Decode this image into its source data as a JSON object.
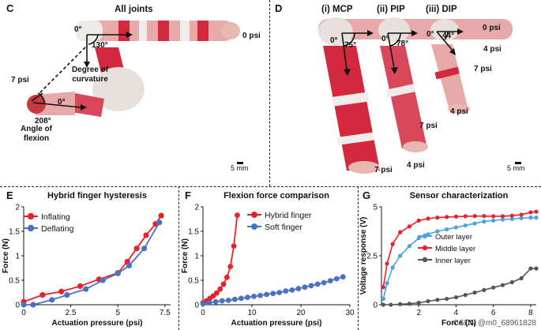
{
  "panel_C": {
    "letter": "C",
    "title": "All joints",
    "labels": {
      "psi0": "0 psi",
      "psi7": "7 psi",
      "deg0a": "0°",
      "deg130": "130°",
      "deg0b": "0°",
      "deg208": "208°",
      "curv": "Degree of curvature",
      "flex": "Angle of flexion",
      "scale": "5 mm"
    }
  },
  "panel_D": {
    "letter": "D",
    "joints": [
      "(i) MCP",
      "(ii) PIP",
      "(iii) DIP"
    ],
    "labels": {
      "deg0_1": "0°",
      "deg75": "75°",
      "deg0_2": "0°",
      "deg78": "78°",
      "deg0_3": "0°",
      "deg44": "44°",
      "p0": "0 psi",
      "p4a": "4 psi",
      "p7a": "7 psi",
      "p4b": "4 psi",
      "p7b": "7 psi",
      "p4c": "4 psi",
      "p7c": "7 psi",
      "scale": "5 mm"
    }
  },
  "chart_data": [
    {
      "panel": "E",
      "type": "line",
      "title": "Hybrid finger hysteresis",
      "xlabel": "Actuation pressure (psi)",
      "ylabel": "Force (N)",
      "xlim": [
        0,
        7.8
      ],
      "ylim": [
        0,
        2
      ],
      "xticks": [
        "0",
        "2.5",
        "5",
        "7.5"
      ],
      "yticks": [
        "0",
        "0.5",
        "1",
        "1.5",
        "2"
      ],
      "legend": "top-left",
      "series": [
        {
          "name": "Inflating",
          "color": "#e8212a",
          "x": [
            0,
            1,
            2,
            3,
            4,
            5,
            5.5,
            6,
            6.5,
            7,
            7.3
          ],
          "y": [
            0.06,
            0.2,
            0.27,
            0.38,
            0.52,
            0.65,
            0.88,
            1.15,
            1.42,
            1.65,
            1.82
          ]
        },
        {
          "name": "Deflating",
          "color": "#4a72c4",
          "x": [
            0,
            0.5,
            1.5,
            2.3,
            3.3,
            4.2,
            5,
            5.6,
            6.4,
            7.2
          ],
          "y": [
            0.0,
            0.0,
            0.1,
            0.2,
            0.32,
            0.5,
            0.64,
            0.8,
            1.15,
            1.68
          ]
        }
      ]
    },
    {
      "panel": "F",
      "type": "line",
      "title": "Flexion force comparison",
      "xlabel": "Actuation pressure (psi)",
      "ylabel": "Force (N)",
      "xlim": [
        0,
        30
      ],
      "ylim": [
        0,
        2
      ],
      "xticks": [
        "0",
        "10",
        "20",
        "30"
      ],
      "yticks": [
        "0",
        "0.5",
        "1",
        "1.5",
        "2"
      ],
      "legend": "top-right",
      "series": [
        {
          "name": "Hybrid finger",
          "color": "#e8212a",
          "x": [
            0,
            0.7,
            1.4,
            2.1,
            2.8,
            3.5,
            4.2,
            4.9,
            5.6,
            6.3,
            7.0
          ],
          "y": [
            0.04,
            0.08,
            0.13,
            0.18,
            0.24,
            0.32,
            0.42,
            0.56,
            0.78,
            1.2,
            1.83
          ]
        },
        {
          "name": "Soft finger",
          "color": "#4a72c4",
          "x": [
            0,
            1.3,
            2.6,
            3.9,
            5.2,
            6.5,
            7.8,
            9.1,
            10.4,
            11.7,
            13,
            14.3,
            15.6,
            16.9,
            18.2,
            19.5,
            20.8,
            22.1,
            23.4,
            24.7,
            26,
            27.3,
            28.6
          ],
          "y": [
            0.02,
            0.04,
            0.06,
            0.08,
            0.09,
            0.11,
            0.13,
            0.15,
            0.17,
            0.19,
            0.21,
            0.23,
            0.25,
            0.28,
            0.3,
            0.33,
            0.36,
            0.39,
            0.42,
            0.45,
            0.49,
            0.53,
            0.57
          ]
        }
      ]
    },
    {
      "panel": "G",
      "type": "line",
      "title": "Sensor characterization",
      "xlabel": "Force (N)",
      "ylabel": "Voltage response (V)",
      "xlim": [
        0,
        8.3
      ],
      "ylim": [
        0,
        5
      ],
      "xticks": [
        "2",
        "4",
        "6",
        "8"
      ],
      "yticks": [
        "0",
        "2.5",
        "5"
      ],
      "legend": "right",
      "series": [
        {
          "name": "Outer layer",
          "color": "#4aa3df",
          "x": [
            0.1,
            0.3,
            0.6,
            1,
            1.5,
            2,
            2.5,
            3,
            3.5,
            4,
            4.5,
            5,
            5.5,
            6,
            6.5,
            7,
            7.5,
            8,
            8.3
          ],
          "y": [
            0.3,
            1.1,
            1.9,
            2.5,
            3.0,
            3.4,
            3.6,
            3.75,
            3.85,
            3.95,
            4.05,
            4.15,
            4.25,
            4.3,
            4.35,
            4.38,
            4.42,
            4.45,
            4.45
          ]
        },
        {
          "name": "Middle layer",
          "color": "#e8212a",
          "x": [
            0.1,
            0.3,
            0.6,
            1,
            1.5,
            2,
            2.5,
            3,
            3.5,
            4,
            4.5,
            5,
            5.5,
            6,
            6.5,
            7,
            7.5,
            8,
            8.3
          ],
          "y": [
            0.9,
            2.1,
            3.1,
            3.7,
            4.0,
            4.3,
            4.4,
            4.45,
            4.48,
            4.5,
            4.52,
            4.53,
            4.53,
            4.52,
            4.52,
            4.55,
            4.6,
            4.72,
            4.75
          ]
        },
        {
          "name": "Inner layer",
          "color": "#555555",
          "x": [
            0.1,
            0.5,
            1,
            1.5,
            2,
            2.5,
            3,
            3.5,
            4,
            4.5,
            5,
            5.5,
            6,
            6.5,
            7,
            7.5,
            8,
            8.3
          ],
          "y": [
            0.0,
            0.0,
            0.03,
            0.05,
            0.1,
            0.18,
            0.25,
            0.3,
            0.38,
            0.5,
            0.62,
            0.75,
            0.88,
            1.0,
            1.15,
            1.35,
            1.85,
            1.85
          ]
        }
      ]
    }
  ],
  "letters": {
    "E": "E",
    "F": "F",
    "G": "G"
  },
  "watermark": "CSDN @m0_68961828"
}
